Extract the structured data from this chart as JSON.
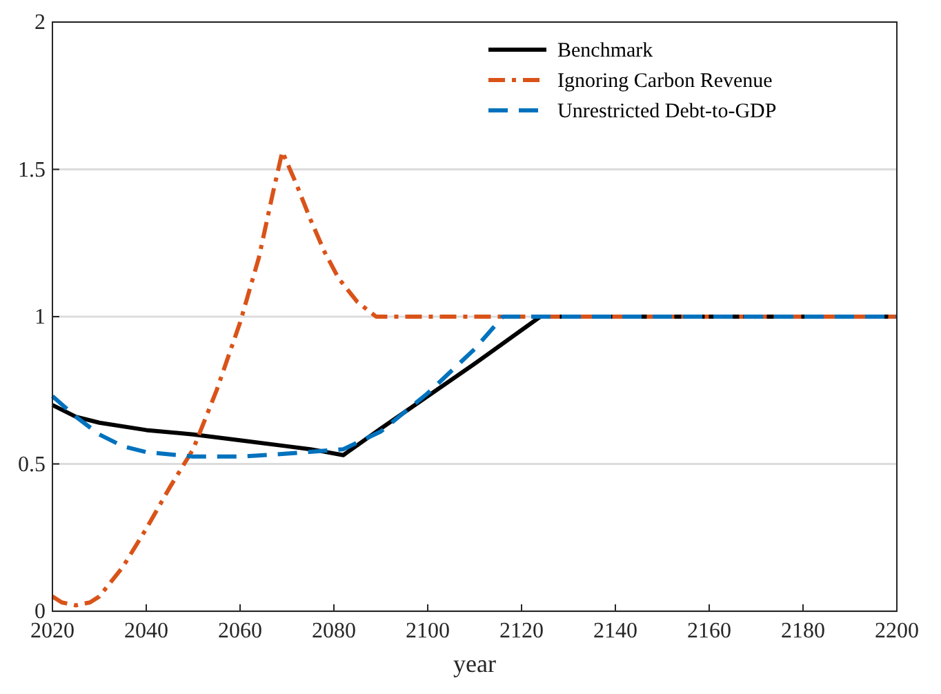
{
  "chart_data": {
    "type": "line",
    "xlabel": "year",
    "xlim": [
      2020,
      2200
    ],
    "xticks": [
      2020,
      2040,
      2060,
      2080,
      2100,
      2120,
      2140,
      2160,
      2180,
      2200
    ],
    "ylim": [
      0,
      2
    ],
    "yticks": [
      0,
      0.5,
      1,
      1.5,
      2
    ],
    "grid": "y",
    "legend": "top right",
    "series": [
      {
        "name": "Benchmark",
        "color": "#000000",
        "line_style": "solid",
        "x": [
          2020,
          2025,
          2030,
          2040,
          2050,
          2060,
          2070,
          2075,
          2082,
          2090,
          2100,
          2110,
          2124,
          2150,
          2200
        ],
        "values": [
          0.7,
          0.66,
          0.64,
          0.615,
          0.6,
          0.58,
          0.56,
          0.55,
          0.53,
          0.62,
          0.73,
          0.84,
          1,
          1,
          1
        ]
      },
      {
        "name": "Ignoring Carbon Revenue",
        "color": "#d95319",
        "line_style": "dashdot",
        "x": [
          2020,
          2022,
          2025,
          2028,
          2030,
          2035,
          2040,
          2045,
          2050,
          2055,
          2060,
          2064,
          2067,
          2069,
          2072,
          2075,
          2078,
          2081,
          2085,
          2089,
          2120,
          2200
        ],
        "values": [
          0.05,
          0.03,
          0.02,
          0.03,
          0.05,
          0.15,
          0.28,
          0.42,
          0.55,
          0.75,
          0.98,
          1.2,
          1.42,
          1.56,
          1.45,
          1.33,
          1.22,
          1.13,
          1.05,
          1,
          1,
          1
        ]
      },
      {
        "name": "Unrestricted Debt-to-GDP",
        "color": "#0072bd",
        "line_style": "dashed",
        "x": [
          2020,
          2025,
          2030,
          2035,
          2040,
          2050,
          2060,
          2070,
          2082,
          2090,
          2100,
          2110,
          2116,
          2150,
          2200
        ],
        "values": [
          0.73,
          0.66,
          0.6,
          0.56,
          0.54,
          0.525,
          0.525,
          0.535,
          0.55,
          0.61,
          0.74,
          0.89,
          1,
          1,
          1
        ]
      }
    ]
  }
}
